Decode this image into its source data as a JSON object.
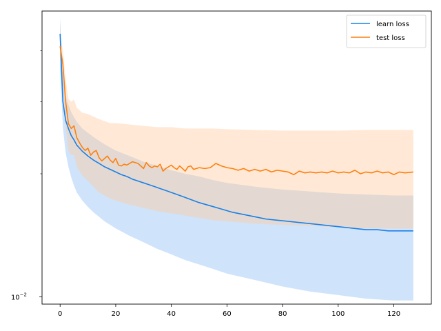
{
  "chart_data": {
    "type": "line",
    "title": "",
    "xlabel": "",
    "ylabel": "",
    "x_axis": {
      "min": -6.5,
      "max": 133.5,
      "ticks": [
        0,
        20,
        40,
        60,
        80,
        100,
        120
      ]
    },
    "y_axis": {
      "scale": "log",
      "min": 0.0096,
      "max": 0.05,
      "ticks": [
        0.01
      ],
      "tick_labels": [
        "10^-2"
      ]
    },
    "legend_placement": "top-right",
    "grid": false,
    "colors": {
      "learn_line": "#1f77b4",
      "learn_line_display": "#1a80e6",
      "learn_band": "#cfe3fb",
      "test_line": "#ff7f0e",
      "test_band": "#ffe1c8",
      "overlap_band": "#d6d2cf"
    },
    "series": [
      {
        "name": "learn loss",
        "key": "learn",
        "color": "#1a80e6",
        "points": [
          [
            0,
            0.044
          ],
          [
            1,
            0.03
          ],
          [
            2,
            0.027
          ],
          [
            3,
            0.0258
          ],
          [
            4,
            0.0248
          ],
          [
            5,
            0.0242
          ],
          [
            6,
            0.0235
          ],
          [
            7,
            0.0231
          ],
          [
            8,
            0.0227
          ],
          [
            9,
            0.0224
          ],
          [
            10,
            0.0221
          ],
          [
            12,
            0.0216
          ],
          [
            14,
            0.0212
          ],
          [
            16,
            0.0208
          ],
          [
            18,
            0.0205
          ],
          [
            20,
            0.0202
          ],
          [
            22,
            0.0199
          ],
          [
            24,
            0.0197
          ],
          [
            26,
            0.0194
          ],
          [
            28,
            0.0192
          ],
          [
            30,
            0.019
          ],
          [
            32,
            0.0188
          ],
          [
            34,
            0.0186
          ],
          [
            36,
            0.0184
          ],
          [
            38,
            0.0182
          ],
          [
            40,
            0.018
          ],
          [
            42,
            0.0178
          ],
          [
            44,
            0.0176
          ],
          [
            46,
            0.0174
          ],
          [
            48,
            0.0172
          ],
          [
            50,
            0.017
          ],
          [
            54,
            0.0167
          ],
          [
            58,
            0.0164
          ],
          [
            62,
            0.0161
          ],
          [
            66,
            0.0159
          ],
          [
            70,
            0.0157
          ],
          [
            74,
            0.0155
          ],
          [
            78,
            0.0154
          ],
          [
            82,
            0.0153
          ],
          [
            86,
            0.0152
          ],
          [
            90,
            0.0151
          ],
          [
            94,
            0.015
          ],
          [
            98,
            0.0149
          ],
          [
            102,
            0.0148
          ],
          [
            106,
            0.0147
          ],
          [
            110,
            0.0146
          ],
          [
            114,
            0.0146
          ],
          [
            118,
            0.0145
          ],
          [
            122,
            0.0145
          ],
          [
            127,
            0.0145
          ]
        ],
        "band_upper": [
          [
            0,
            0.048
          ],
          [
            1,
            0.034
          ],
          [
            2,
            0.031
          ],
          [
            3,
            0.0295
          ],
          [
            4,
            0.0283
          ],
          [
            5,
            0.0275
          ],
          [
            6,
            0.0268
          ],
          [
            8,
            0.0258
          ],
          [
            10,
            0.0252
          ],
          [
            12,
            0.0246
          ],
          [
            14,
            0.0241
          ],
          [
            16,
            0.0236
          ],
          [
            18,
            0.0232
          ],
          [
            20,
            0.0228
          ],
          [
            25,
            0.0221
          ],
          [
            30,
            0.0214
          ],
          [
            35,
            0.0209
          ],
          [
            40,
            0.0204
          ],
          [
            45,
            0.02
          ],
          [
            50,
            0.0197
          ],
          [
            55,
            0.0193
          ],
          [
            60,
            0.019
          ],
          [
            70,
            0.0186
          ],
          [
            80,
            0.0183
          ],
          [
            90,
            0.0181
          ],
          [
            100,
            0.0179
          ],
          [
            110,
            0.0178
          ],
          [
            120,
            0.0177
          ],
          [
            127,
            0.0177
          ]
        ],
        "band_lower": [
          [
            0,
            0.036
          ],
          [
            1,
            0.026
          ],
          [
            2,
            0.0225
          ],
          [
            3,
            0.0208
          ],
          [
            4,
            0.0196
          ],
          [
            5,
            0.0187
          ],
          [
            6,
            0.018
          ],
          [
            8,
            0.0172
          ],
          [
            10,
            0.0166
          ],
          [
            12,
            0.0161
          ],
          [
            14,
            0.0157
          ],
          [
            16,
            0.0153
          ],
          [
            18,
            0.015
          ],
          [
            20,
            0.0147
          ],
          [
            25,
            0.0141
          ],
          [
            30,
            0.0136
          ],
          [
            35,
            0.0131
          ],
          [
            40,
            0.0127
          ],
          [
            45,
            0.0123
          ],
          [
            50,
            0.012
          ],
          [
            55,
            0.0117
          ],
          [
            60,
            0.0114
          ],
          [
            70,
            0.011
          ],
          [
            80,
            0.0106
          ],
          [
            90,
            0.0103
          ],
          [
            100,
            0.0101
          ],
          [
            110,
            0.0099
          ],
          [
            120,
            0.0098
          ],
          [
            127,
            0.0098
          ]
        ]
      },
      {
        "name": "test loss",
        "key": "test",
        "color": "#ff7f0e",
        "points": [
          [
            0,
            0.041
          ],
          [
            1,
            0.037
          ],
          [
            2,
            0.03
          ],
          [
            3,
            0.0265
          ],
          [
            4,
            0.0258
          ],
          [
            5,
            0.0262
          ],
          [
            6,
            0.0245
          ],
          [
            7,
            0.0238
          ],
          [
            8,
            0.0232
          ],
          [
            9,
            0.0228
          ],
          [
            10,
            0.0231
          ],
          [
            11,
            0.0222
          ],
          [
            12,
            0.0226
          ],
          [
            13,
            0.0228
          ],
          [
            14,
            0.0219
          ],
          [
            15,
            0.0215
          ],
          [
            16,
            0.0218
          ],
          [
            17,
            0.0221
          ],
          [
            18,
            0.0216
          ],
          [
            19,
            0.0213
          ],
          [
            20,
            0.0218
          ],
          [
            21,
            0.021
          ],
          [
            22,
            0.0209
          ],
          [
            23,
            0.0211
          ],
          [
            24,
            0.021
          ],
          [
            25,
            0.0212
          ],
          [
            26,
            0.0214
          ],
          [
            27,
            0.0213
          ],
          [
            28,
            0.0212
          ],
          [
            29,
            0.0209
          ],
          [
            30,
            0.0206
          ],
          [
            31,
            0.0213
          ],
          [
            32,
            0.0209
          ],
          [
            33,
            0.0207
          ],
          [
            34,
            0.0209
          ],
          [
            35,
            0.0208
          ],
          [
            36,
            0.0211
          ],
          [
            37,
            0.0203
          ],
          [
            38,
            0.0206
          ],
          [
            39,
            0.0208
          ],
          [
            40,
            0.021
          ],
          [
            41,
            0.0207
          ],
          [
            42,
            0.0205
          ],
          [
            43,
            0.0209
          ],
          [
            44,
            0.0206
          ],
          [
            45,
            0.0203
          ],
          [
            46,
            0.0208
          ],
          [
            47,
            0.0209
          ],
          [
            48,
            0.0205
          ],
          [
            49,
            0.0206
          ],
          [
            50,
            0.0207
          ],
          [
            52,
            0.0206
          ],
          [
            54,
            0.0207
          ],
          [
            56,
            0.0212
          ],
          [
            58,
            0.0209
          ],
          [
            60,
            0.0207
          ],
          [
            62,
            0.0206
          ],
          [
            64,
            0.0204
          ],
          [
            66,
            0.0206
          ],
          [
            68,
            0.0203
          ],
          [
            70,
            0.0205
          ],
          [
            72,
            0.0203
          ],
          [
            74,
            0.0205
          ],
          [
            76,
            0.0202
          ],
          [
            78,
            0.0204
          ],
          [
            80,
            0.0203
          ],
          [
            82,
            0.0202
          ],
          [
            84,
            0.0199
          ],
          [
            86,
            0.0203
          ],
          [
            88,
            0.0201
          ],
          [
            90,
            0.0202
          ],
          [
            92,
            0.0201
          ],
          [
            94,
            0.0202
          ],
          [
            96,
            0.0201
          ],
          [
            98,
            0.0203
          ],
          [
            100,
            0.0201
          ],
          [
            102,
            0.0202
          ],
          [
            104,
            0.0201
          ],
          [
            106,
            0.0204
          ],
          [
            108,
            0.02
          ],
          [
            110,
            0.0202
          ],
          [
            112,
            0.0201
          ],
          [
            114,
            0.0203
          ],
          [
            116,
            0.0201
          ],
          [
            118,
            0.0202
          ],
          [
            120,
            0.0199
          ],
          [
            122,
            0.0202
          ],
          [
            124,
            0.0201
          ],
          [
            127,
            0.0202
          ]
        ],
        "band_upper": [
          [
            0,
            0.044
          ],
          [
            1,
            0.04
          ],
          [
            2,
            0.034
          ],
          [
            3,
            0.0305
          ],
          [
            4,
            0.03
          ],
          [
            5,
            0.0304
          ],
          [
            6,
            0.029
          ],
          [
            8,
            0.0282
          ],
          [
            10,
            0.028
          ],
          [
            12,
            0.0276
          ],
          [
            14,
            0.0272
          ],
          [
            16,
            0.0269
          ],
          [
            18,
            0.0266
          ],
          [
            20,
            0.0266
          ],
          [
            25,
            0.0264
          ],
          [
            30,
            0.0262
          ],
          [
            35,
            0.026
          ],
          [
            40,
            0.026
          ],
          [
            45,
            0.0258
          ],
          [
            50,
            0.0258
          ],
          [
            55,
            0.0258
          ],
          [
            60,
            0.0257
          ],
          [
            70,
            0.0256
          ],
          [
            80,
            0.0255
          ],
          [
            90,
            0.0255
          ],
          [
            100,
            0.0255
          ],
          [
            110,
            0.0256
          ],
          [
            120,
            0.0256
          ],
          [
            127,
            0.0256
          ]
        ],
        "band_lower": [
          [
            0,
            0.038
          ],
          [
            1,
            0.034
          ],
          [
            2,
            0.026
          ],
          [
            3,
            0.0228
          ],
          [
            4,
            0.0222
          ],
          [
            5,
            0.0223
          ],
          [
            6,
            0.0208
          ],
          [
            8,
            0.0198
          ],
          [
            10,
            0.0192
          ],
          [
            12,
            0.0186
          ],
          [
            14,
            0.018
          ],
          [
            16,
            0.0177
          ],
          [
            18,
            0.0174
          ],
          [
            20,
            0.0172
          ],
          [
            25,
            0.0168
          ],
          [
            30,
            0.0165
          ],
          [
            35,
            0.0162
          ],
          [
            40,
            0.016
          ],
          [
            45,
            0.0158
          ],
          [
            50,
            0.0156
          ],
          [
            55,
            0.0154
          ],
          [
            60,
            0.0153
          ],
          [
            70,
            0.0151
          ],
          [
            80,
            0.015
          ],
          [
            90,
            0.0149
          ],
          [
            100,
            0.0148
          ],
          [
            110,
            0.0147
          ],
          [
            120,
            0.0147
          ],
          [
            127,
            0.0147
          ]
        ]
      }
    ]
  }
}
